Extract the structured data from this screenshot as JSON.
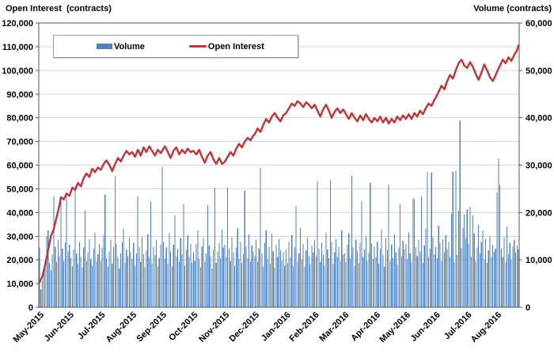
{
  "chart_data": {
    "type": "bar+line combo",
    "title": "",
    "left_axis": {
      "title": "Open Interest  (contracts)",
      "min": 0,
      "max": 120000,
      "step": 10000,
      "tick_labels": [
        "120,000",
        "110,000",
        "100,000",
        "90,000",
        "80,000",
        "70,000",
        "60,000",
        "50,000",
        "40,000",
        "30,000",
        "20,000",
        "10,000",
        "0"
      ]
    },
    "right_axis": {
      "title": "Volume (contracts)",
      "min": 0,
      "max": 60000,
      "step": 10000,
      "tick_labels": [
        "60,000",
        "50,000",
        "40,000",
        "30,000",
        "20,000",
        "10,000",
        "0"
      ]
    },
    "x_axis": {
      "tick_labels": [
        "May-2015",
        "Jun-2015",
        "Jul-2015",
        "Aug-2015",
        "Sep-2015",
        "Oct-2015",
        "Nov-2015",
        "Dec-2015",
        "Jan-2016",
        "Feb-2016",
        "Mar-2016",
        "Apr-2016",
        "May-2016",
        "Jun-2016",
        "Jul-2016",
        "Aug-2016"
      ],
      "month_start_day_index": [
        0,
        21,
        43,
        65,
        86,
        108,
        130,
        151,
        173,
        193,
        214,
        236,
        257,
        278,
        300,
        321
      ],
      "n_days": 337
    },
    "legend": [
      {
        "label": "Volume",
        "color": "#4f81bd",
        "type": "bar"
      },
      {
        "label": "Open Interest",
        "color": "#be3437",
        "type": "line"
      }
    ],
    "grid": {
      "horizontal": true,
      "vertical": false,
      "color": "#ccd7ea"
    },
    "colors": {
      "bar": "#4f81bd",
      "line": "#be3437",
      "border": "#595959",
      "tick": "#595959",
      "text": "#000000"
    },
    "series": [
      {
        "name": "Volume",
        "axis": "right",
        "type": "bar",
        "values": [
          12600,
          3800,
          5600,
          8200,
          9800,
          15000,
          16200,
          9400,
          7800,
          11200,
          23400,
          12800,
          9600,
          14200,
          10800,
          22600,
          12400,
          9800,
          13600,
          24200,
          11800,
          13200,
          10400,
          8600,
          12200,
          25600,
          11400,
          9200,
          13800,
          10600,
          8400,
          12600,
          20400,
          9800,
          11600,
          14400,
          10200,
          8800,
          12400,
          15800,
          9600,
          11200,
          13400,
          9800,
          12600,
          15200,
          23800,
          10400,
          8600,
          11800,
          14200,
          9200,
          12800,
          27600,
          13400,
          10600,
          8200,
          11400,
          13800,
          16600,
          9400,
          12200,
          10800,
          14600,
          11600,
          10200,
          13600,
          8800,
          11400,
          23400,
          12600,
          9600,
          14800,
          11200,
          8400,
          12000,
          15400,
          10600,
          22200,
          9200,
          12800,
          11000,
          14200,
          8600,
          10400,
          13200,
          29600,
          13800,
          10400,
          12600,
          9200,
          15600,
          11800,
          8600,
          13200,
          19400,
          10800,
          12400,
          9600,
          14600,
          11200,
          21800,
          8800,
          12000,
          15200,
          10600,
          13400,
          9400,
          11600,
          9800,
          13400,
          16200,
          10200,
          8400,
          12800,
          14600,
          9600,
          11400,
          21600,
          13000,
          10800,
          8200,
          12200,
          25200,
          9400,
          11800,
          13600,
          10400,
          16400,
          12600,
          13200,
          10600,
          25200,
          12400,
          9800,
          14800,
          11600,
          8800,
          12600,
          16600,
          10200,
          13800,
          9400,
          11200,
          24600,
          12800,
          10400,
          15400,
          9600,
          13000,
          11800,
          10800,
          14200,
          9600,
          12400,
          29400,
          11400,
          8600,
          13600,
          16200,
          10200,
          12800,
          9200,
          15600,
          11800,
          8400,
          13200,
          10600,
          14400,
          12000,
          9800,
          11600,
          8800,
          12200,
          9400,
          13800,
          10600,
          15200,
          8800,
          12600,
          21400,
          9600,
          11400,
          16800,
          10200,
          13400,
          8600,
          12000,
          14600,
          10800,
          9200,
          13000,
          11600,
          14200,
          10800,
          26600,
          12400,
          9600,
          13600,
          11000,
          8800,
          15800,
          12200,
          10400,
          26800,
          13800,
          9200,
          11600,
          14400,
          10600,
          12800,
          9800,
          16200,
          11200,
          11400,
          9600,
          13200,
          15600,
          10400,
          27800,
          12600,
          8800,
          14200,
          11800,
          9400,
          13600,
          22400,
          10600,
          12200,
          15000,
          9800,
          11600,
          26200,
          13400,
          10200,
          12800,
          10600,
          13800,
          9200,
          12400,
          16400,
          11000,
          8600,
          14600,
          12000,
          25800,
          9800,
          13200,
          10400,
          15400,
          11600,
          9000,
          12600,
          21800,
          10800,
          14000,
          12200,
          13400,
          10200,
          15800,
          11400,
          9600,
          23000,
          22800,
          12600,
          10800,
          14200,
          11800,
          23400,
          9400,
          13000,
          16600,
          28600,
          10600,
          12400,
          28400,
          14800,
          11200,
          12800,
          10400,
          17200,
          13600,
          9800,
          14400,
          11600,
          15200,
          12200,
          13800,
          10600,
          19800,
          28600,
          9600,
          28800,
          11000,
          20400,
          39400,
          12600,
          16800,
          19600,
          14600,
          20600,
          13400,
          21200,
          10800,
          19400,
          15600,
          9800,
          12600,
          17400,
          11400,
          13800,
          16200,
          10200,
          14400,
          9400,
          12000,
          15000,
          10600,
          13200,
          11800,
          12400,
          24200,
          31400,
          25800,
          12400,
          10600,
          14800,
          9600,
          17000,
          11200,
          13600,
          10000,
          12800,
          14200,
          11600,
          13000,
          12200
        ]
      },
      {
        "name": "Open Interest",
        "axis": "left",
        "type": "line",
        "points": [
          [
            0,
            10500
          ],
          [
            2,
            13000
          ],
          [
            4,
            18000
          ],
          [
            6,
            24000
          ],
          [
            8,
            30000
          ],
          [
            10,
            33000
          ],
          [
            12,
            38000
          ],
          [
            14,
            43000
          ],
          [
            15,
            46500
          ],
          [
            17,
            45500
          ],
          [
            19,
            48000
          ],
          [
            21,
            47000
          ],
          [
            23,
            50500
          ],
          [
            25,
            49500
          ],
          [
            27,
            52500
          ],
          [
            29,
            51000
          ],
          [
            31,
            54500
          ],
          [
            33,
            56500
          ],
          [
            35,
            55000
          ],
          [
            37,
            58500
          ],
          [
            39,
            57000
          ],
          [
            41,
            59000
          ],
          [
            43,
            58000
          ],
          [
            45,
            60500
          ],
          [
            47,
            62000
          ],
          [
            49,
            60000
          ],
          [
            51,
            57500
          ],
          [
            53,
            60500
          ],
          [
            55,
            63000
          ],
          [
            57,
            61500
          ],
          [
            59,
            64000
          ],
          [
            61,
            66000
          ],
          [
            63,
            64500
          ],
          [
            65,
            65500
          ],
          [
            67,
            63500
          ],
          [
            69,
            66500
          ],
          [
            71,
            64000
          ],
          [
            73,
            67500
          ],
          [
            75,
            65500
          ],
          [
            77,
            68000
          ],
          [
            79,
            66000
          ],
          [
            81,
            64000
          ],
          [
            83,
            66500
          ],
          [
            85,
            65000
          ],
          [
            86,
            66000
          ],
          [
            88,
            68000
          ],
          [
            90,
            65500
          ],
          [
            92,
            63000
          ],
          [
            94,
            66000
          ],
          [
            96,
            67500
          ],
          [
            98,
            64500
          ],
          [
            100,
            66500
          ],
          [
            102,
            65000
          ],
          [
            104,
            67000
          ],
          [
            106,
            65500
          ],
          [
            108,
            66000
          ],
          [
            110,
            64500
          ],
          [
            112,
            66500
          ],
          [
            114,
            63500
          ],
          [
            116,
            61000
          ],
          [
            118,
            64000
          ],
          [
            120,
            65500
          ],
          [
            122,
            62500
          ],
          [
            124,
            60500
          ],
          [
            126,
            63000
          ],
          [
            128,
            60500
          ],
          [
            130,
            61500
          ],
          [
            132,
            63500
          ],
          [
            134,
            65500
          ],
          [
            136,
            64000
          ],
          [
            138,
            67000
          ],
          [
            140,
            69000
          ],
          [
            142,
            67500
          ],
          [
            144,
            70000
          ],
          [
            146,
            71500
          ],
          [
            148,
            70500
          ],
          [
            150,
            72500
          ],
          [
            151,
            73000
          ],
          [
            153,
            75500
          ],
          [
            155,
            74000
          ],
          [
            157,
            77000
          ],
          [
            159,
            79500
          ],
          [
            161,
            78000
          ],
          [
            163,
            80500
          ],
          [
            165,
            82000
          ],
          [
            167,
            80000
          ],
          [
            169,
            78500
          ],
          [
            171,
            81000
          ],
          [
            173,
            82000
          ],
          [
            175,
            84000
          ],
          [
            177,
            86000
          ],
          [
            179,
            85000
          ],
          [
            181,
            87000
          ],
          [
            183,
            86000
          ],
          [
            185,
            84500
          ],
          [
            187,
            86500
          ],
          [
            189,
            85500
          ],
          [
            191,
            84000
          ],
          [
            193,
            85500
          ],
          [
            195,
            83000
          ],
          [
            197,
            80500
          ],
          [
            199,
            83500
          ],
          [
            201,
            85500
          ],
          [
            203,
            83000
          ],
          [
            205,
            80000
          ],
          [
            207,
            82500
          ],
          [
            209,
            84000
          ],
          [
            211,
            82000
          ],
          [
            213,
            83500
          ],
          [
            215,
            81500
          ],
          [
            217,
            79500
          ],
          [
            219,
            82000
          ],
          [
            221,
            80000
          ],
          [
            223,
            78500
          ],
          [
            225,
            81000
          ],
          [
            227,
            79000
          ],
          [
            229,
            81500
          ],
          [
            231,
            79500
          ],
          [
            233,
            78000
          ],
          [
            235,
            80000
          ],
          [
            237,
            78500
          ],
          [
            239,
            80500
          ],
          [
            241,
            78000
          ],
          [
            243,
            80000
          ],
          [
            245,
            77500
          ],
          [
            247,
            79500
          ],
          [
            249,
            78000
          ],
          [
            251,
            80500
          ],
          [
            253,
            79000
          ],
          [
            255,
            81000
          ],
          [
            257,
            79500
          ],
          [
            259,
            81500
          ],
          [
            261,
            79500
          ],
          [
            263,
            82000
          ],
          [
            265,
            80500
          ],
          [
            267,
            83000
          ],
          [
            269,
            81500
          ],
          [
            271,
            84000
          ],
          [
            273,
            86000
          ],
          [
            275,
            85000
          ],
          [
            277,
            87500
          ],
          [
            278,
            88500
          ],
          [
            280,
            91000
          ],
          [
            282,
            93500
          ],
          [
            284,
            92000
          ],
          [
            286,
            95500
          ],
          [
            288,
            98000
          ],
          [
            290,
            96500
          ],
          [
            292,
            100000
          ],
          [
            294,
            103000
          ],
          [
            296,
            104500
          ],
          [
            298,
            102000
          ],
          [
            300,
            101000
          ],
          [
            302,
            103500
          ],
          [
            304,
            101500
          ],
          [
            306,
            98500
          ],
          [
            308,
            96000
          ],
          [
            310,
            99000
          ],
          [
            312,
            102500
          ],
          [
            314,
            100000
          ],
          [
            316,
            97000
          ],
          [
            318,
            95500
          ],
          [
            320,
            98000
          ],
          [
            321,
            99500
          ],
          [
            323,
            102000
          ],
          [
            325,
            104500
          ],
          [
            327,
            103000
          ],
          [
            329,
            105500
          ],
          [
            331,
            104000
          ],
          [
            333,
            106500
          ],
          [
            335,
            108500
          ],
          [
            336,
            110500
          ]
        ]
      }
    ]
  }
}
